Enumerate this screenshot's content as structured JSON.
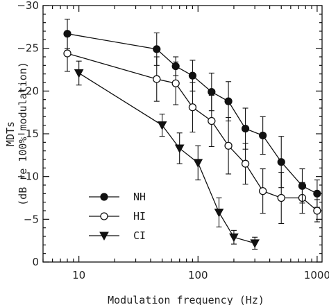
{
  "chart_data": {
    "type": "line",
    "xlabel": "Modulation frequency (Hz)",
    "ylabel_line1": "MDTs",
    "ylabel_line2": "(dB re 100% modulation)",
    "x_scale": "log",
    "xlim": [
      5,
      1100
    ],
    "ylim": [
      0,
      -30
    ],
    "x_ticks": [
      10,
      100,
      1000
    ],
    "x_tick_labels": [
      "10",
      "100",
      "1000"
    ],
    "y_ticks": [
      0,
      -5,
      -10,
      -15,
      -20,
      -25,
      -30
    ],
    "y_tick_labels": [
      "0",
      "-5",
      "-10",
      "-15",
      "-20",
      "-25",
      "-30"
    ],
    "grid": false,
    "legend_position": "bottom-left",
    "series": [
      {
        "name": "NH",
        "marker": "filled-circle",
        "x": [
          8,
          45,
          65,
          90,
          130,
          180,
          250,
          350,
          500,
          750,
          1000
        ],
        "y": [
          -26.7,
          -24.9,
          -22.9,
          -21.8,
          -19.9,
          -18.8,
          -15.6,
          -14.8,
          -11.7,
          -8.9,
          -8.0
        ],
        "err": [
          1.7,
          1.9,
          1.1,
          1.8,
          2.2,
          2.3,
          2.4,
          2.2,
          3.0,
          2.0,
          1.6
        ]
      },
      {
        "name": "HI",
        "marker": "open-circle",
        "x": [
          8,
          45,
          65,
          90,
          130,
          180,
          250,
          350,
          500,
          750,
          1000
        ],
        "y": [
          -24.4,
          -21.4,
          -20.9,
          -18.1,
          -16.5,
          -13.6,
          -11.5,
          -8.3,
          -7.5,
          -7.5,
          -6.0
        ],
        "err": [
          2.1,
          2.6,
          2.5,
          2.9,
          3.0,
          3.3,
          2.4,
          2.6,
          3.0,
          1.8,
          1.3
        ]
      },
      {
        "name": "CI",
        "marker": "filled-triangle-down",
        "x": [
          10,
          50,
          70,
          100,
          150,
          200,
          300
        ],
        "y": [
          -22.1,
          -16.0,
          -13.3,
          -11.6,
          -5.8,
          -2.9,
          -2.2
        ],
        "err": [
          1.4,
          1.3,
          1.8,
          2.0,
          1.7,
          0.8,
          0.7
        ]
      }
    ]
  }
}
